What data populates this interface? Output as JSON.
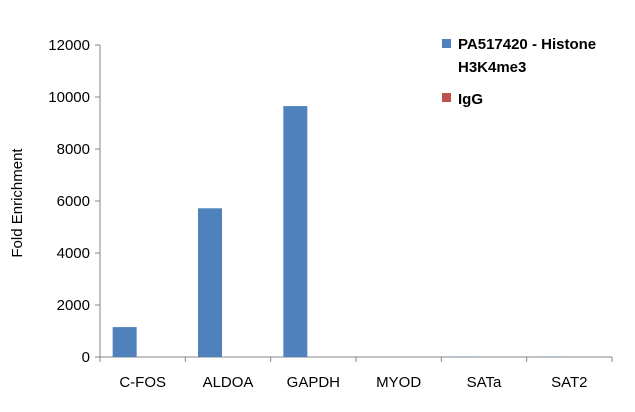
{
  "chart_data": {
    "type": "bar",
    "categories": [
      "C-FOS",
      "ALDOA",
      "GAPDH",
      "MYOD",
      "SATa",
      "SAT2"
    ],
    "series": [
      {
        "name": "PA517420 - Histone H3K4me3",
        "color": "#4f81bd",
        "values": [
          1150,
          5720,
          9650,
          0,
          15,
          15
        ]
      },
      {
        "name": "IgG",
        "color": "#c0504d",
        "values": [
          0,
          0,
          0,
          0,
          0,
          0
        ]
      }
    ],
    "title": "",
    "xlabel": "",
    "ylabel": "Fold Enrichment",
    "ylim": [
      0,
      12000
    ],
    "yticks": [
      0,
      2000,
      4000,
      6000,
      8000,
      10000,
      12000
    ],
    "grid": false,
    "legend_position": "top-right"
  }
}
